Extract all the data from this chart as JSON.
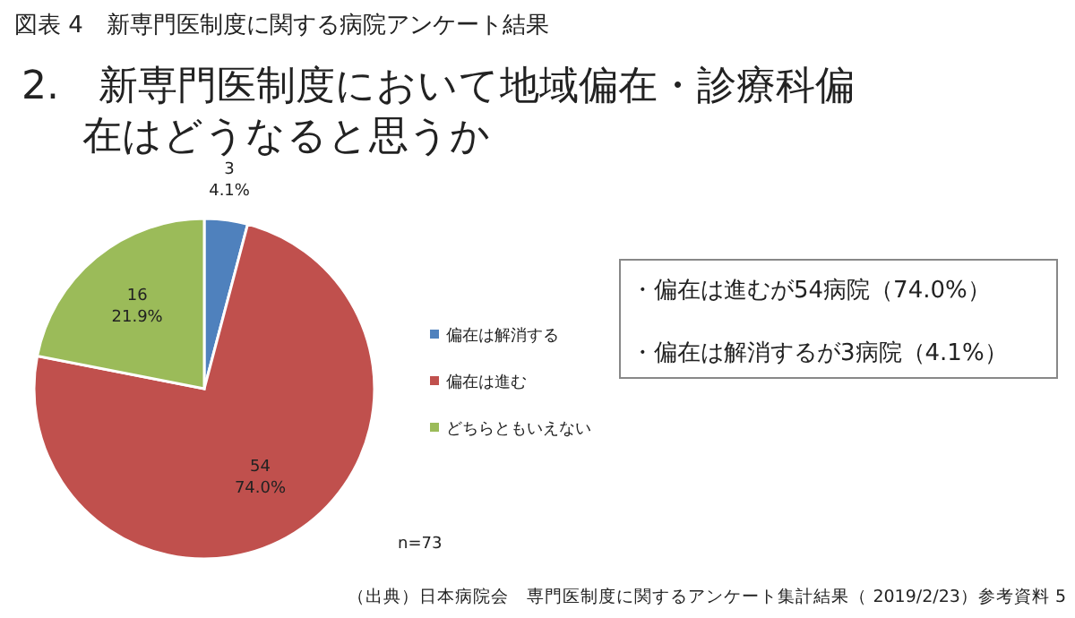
{
  "chart_data": {
    "type": "pie",
    "title": "図表 4　新専門医制度に関する病院アンケート結果",
    "subtitle": "2.　新専門医制度において地域偏在・診療科偏在はどうなると思うか",
    "categories": [
      "偏在は解消する",
      "偏在は進む",
      "どちらともいえない"
    ],
    "values": [
      3,
      54,
      16
    ],
    "colors": [
      "#4f81bd",
      "#c0504d",
      "#9bbb59"
    ],
    "value_labels": [
      "3\n4.1%",
      "54\n74.0%",
      "16\n21.9%"
    ],
    "legend": "right",
    "annotations": [
      "・偏在は進むが54病院（74.0%）",
      "・偏在は解消するが3病院（4.1%）",
      "n=73",
      "（出典）日本病院会　専門医制度に関するアンケート集計結果（ 2019/2/23）参考資料 5"
    ]
  }
}
